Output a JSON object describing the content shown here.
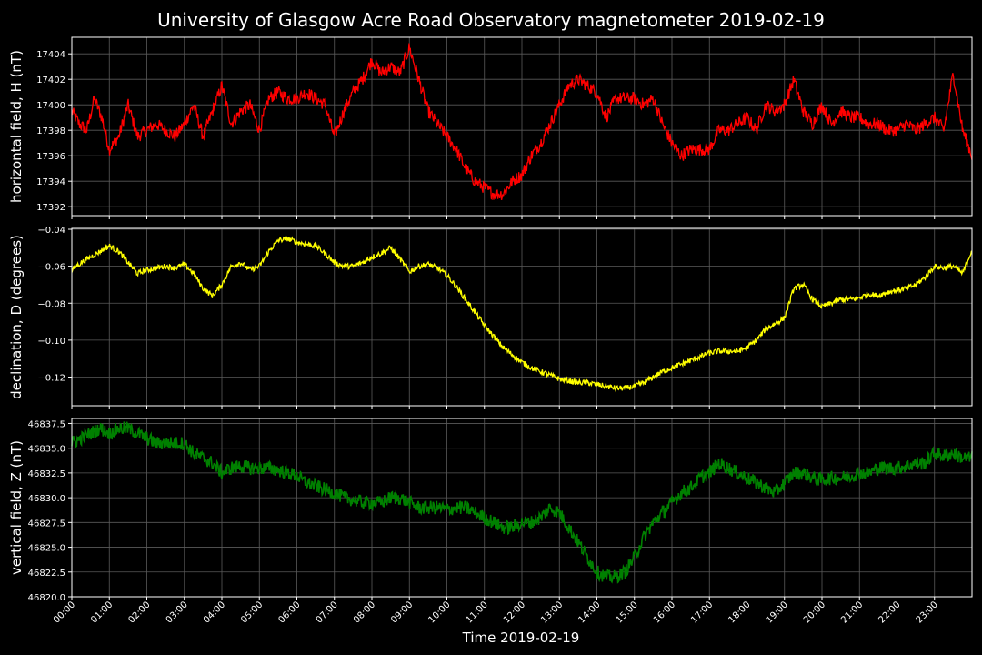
{
  "title": "University of Glasgow Acre Road Observatory magnetometer 2019-02-19",
  "xlabel": "Time 2019-02-19",
  "x_ticks": [
    "00:00",
    "01:00",
    "02:00",
    "03:00",
    "04:00",
    "05:00",
    "06:00",
    "07:00",
    "08:00",
    "09:00",
    "10:00",
    "11:00",
    "12:00",
    "13:00",
    "14:00",
    "15:00",
    "16:00",
    "17:00",
    "18:00",
    "19:00",
    "20:00",
    "21:00",
    "22:00",
    "23:00"
  ],
  "chart_data": [
    {
      "type": "line",
      "ylabel": "horizontal field, H (nT)",
      "color": "#ff0000",
      "xlim": [
        0,
        24
      ],
      "ylim": [
        17391.3,
        17405.3
      ],
      "yticks": [
        17392,
        17394,
        17396,
        17398,
        17400,
        17402,
        17404
      ],
      "ytick_labels": [
        "17392",
        "17394",
        "17396",
        "17398",
        "17400",
        "17402",
        "17404"
      ],
      "grid": true,
      "x": [
        0,
        0.2,
        0.4,
        0.6,
        0.8,
        1.0,
        1.25,
        1.5,
        1.75,
        2.0,
        2.25,
        2.5,
        2.75,
        3.0,
        3.25,
        3.5,
        3.75,
        4.0,
        4.25,
        4.5,
        4.75,
        5.0,
        5.25,
        5.5,
        5.75,
        6.0,
        6.25,
        6.5,
        6.75,
        7.0,
        7.25,
        7.5,
        7.75,
        8.0,
        8.25,
        8.5,
        8.75,
        9.0,
        9.25,
        9.5,
        9.75,
        10.0,
        10.25,
        10.5,
        10.75,
        11.0,
        11.25,
        11.5,
        11.75,
        12.0,
        12.25,
        12.5,
        12.75,
        13.0,
        13.25,
        13.5,
        13.75,
        14.0,
        14.25,
        14.5,
        14.75,
        15.0,
        15.25,
        15.5,
        15.75,
        16.0,
        16.25,
        16.5,
        16.75,
        17.0,
        17.25,
        17.5,
        17.75,
        18.0,
        18.25,
        18.5,
        18.75,
        19.0,
        19.25,
        19.5,
        19.75,
        20.0,
        20.25,
        20.5,
        20.75,
        21.0,
        21.25,
        21.5,
        21.75,
        22.0,
        22.25,
        22.5,
        22.75,
        23.0,
        23.25,
        23.5,
        23.75,
        24.0
      ],
      "values": [
        17399.5,
        17398.5,
        17398,
        17400.5,
        17399,
        17396.5,
        17397.5,
        17400,
        17397.5,
        17398,
        17398.5,
        17398,
        17397.5,
        17398.5,
        17400,
        17397.5,
        17399.5,
        17401.5,
        17398.5,
        17399.5,
        17400,
        17398,
        17400.5,
        17401,
        17400.5,
        17400.5,
        17401,
        17400.5,
        17400,
        17397.5,
        17399.5,
        17401,
        17402,
        17403.5,
        17402.5,
        17403,
        17402.5,
        17404.5,
        17402,
        17399.5,
        17398.5,
        17397.5,
        17396.5,
        17395,
        17394,
        17393.5,
        17393,
        17393,
        17394,
        17394.5,
        17396,
        17397,
        17398.5,
        17400,
        17401.5,
        17402,
        17401.5,
        17401,
        17399,
        17400.5,
        17400.5,
        17400.5,
        17400,
        17400.5,
        17398.5,
        17397,
        17396,
        17396.5,
        17396.5,
        17396.5,
        17398,
        17398,
        17398.5,
        17399,
        17398,
        17400,
        17399.5,
        17400,
        17402,
        17399.5,
        17398.5,
        17400,
        17398.5,
        17399.5,
        17399,
        17399,
        17398.5,
        17398.5,
        17398,
        17398,
        17398.5,
        17398,
        17398.5,
        17399,
        17398,
        17402.5,
        17398,
        17396
      ],
      "noise": 0.5
    },
    {
      "type": "line",
      "ylabel": "declination, D (degrees)",
      "color": "#ffff00",
      "xlim": [
        0,
        24
      ],
      "ylim": [
        -0.1355,
        -0.0395
      ],
      "yticks": [
        -0.12,
        -0.1,
        -0.08,
        -0.06,
        -0.04
      ],
      "ytick_labels": [
        "−0.12",
        "−0.10",
        "−0.08",
        "−0.06",
        "−0.04"
      ],
      "grid": true,
      "x": [
        0,
        0.25,
        0.5,
        0.75,
        1.0,
        1.25,
        1.5,
        1.75,
        2.0,
        2.25,
        2.5,
        2.75,
        3.0,
        3.25,
        3.5,
        3.75,
        4.0,
        4.25,
        4.5,
        4.75,
        5.0,
        5.25,
        5.5,
        5.75,
        6.0,
        6.25,
        6.5,
        6.75,
        7.0,
        7.25,
        7.5,
        7.75,
        8.0,
        8.25,
        8.5,
        8.75,
        9.0,
        9.25,
        9.5,
        9.75,
        10.0,
        10.25,
        10.5,
        10.75,
        11.0,
        11.25,
        11.5,
        11.75,
        12.0,
        12.25,
        12.5,
        12.75,
        13.0,
        13.25,
        13.5,
        13.75,
        14.0,
        14.25,
        14.5,
        14.75,
        15.0,
        15.25,
        15.5,
        15.75,
        16.0,
        16.25,
        16.5,
        16.75,
        17.0,
        17.25,
        17.5,
        17.75,
        18.0,
        18.25,
        18.5,
        18.75,
        19.0,
        19.25,
        19.5,
        19.75,
        20.0,
        20.25,
        20.5,
        20.75,
        21.0,
        21.25,
        21.5,
        21.75,
        22.0,
        22.25,
        22.5,
        22.75,
        23.0,
        23.25,
        23.5,
        23.75,
        24.0
      ],
      "values": [
        -0.062,
        -0.058,
        -0.055,
        -0.052,
        -0.049,
        -0.052,
        -0.058,
        -0.064,
        -0.062,
        -0.061,
        -0.06,
        -0.061,
        -0.059,
        -0.064,
        -0.072,
        -0.076,
        -0.07,
        -0.06,
        -0.058,
        -0.062,
        -0.06,
        -0.052,
        -0.046,
        -0.045,
        -0.047,
        -0.048,
        -0.049,
        -0.053,
        -0.058,
        -0.06,
        -0.06,
        -0.058,
        -0.055,
        -0.053,
        -0.05,
        -0.056,
        -0.063,
        -0.06,
        -0.059,
        -0.061,
        -0.065,
        -0.071,
        -0.078,
        -0.085,
        -0.092,
        -0.098,
        -0.104,
        -0.108,
        -0.112,
        -0.115,
        -0.117,
        -0.119,
        -0.121,
        -0.122,
        -0.123,
        -0.123,
        -0.124,
        -0.125,
        -0.126,
        -0.126,
        -0.125,
        -0.123,
        -0.12,
        -0.117,
        -0.115,
        -0.113,
        -0.111,
        -0.109,
        -0.107,
        -0.106,
        -0.106,
        -0.106,
        -0.104,
        -0.1,
        -0.094,
        -0.091,
        -0.088,
        -0.072,
        -0.07,
        -0.078,
        -0.082,
        -0.08,
        -0.078,
        -0.078,
        -0.077,
        -0.075,
        -0.076,
        -0.074,
        -0.073,
        -0.072,
        -0.07,
        -0.066,
        -0.06,
        -0.061,
        -0.06,
        -0.064,
        -0.051
      ],
      "noise": 0.0015
    },
    {
      "type": "line",
      "ylabel": "vertical field, Z (nT)",
      "color": "#008000",
      "xlim": [
        0,
        24
      ],
      "ylim": [
        46820.0,
        46838.0
      ],
      "yticks": [
        46820.0,
        46822.5,
        46825.0,
        46827.5,
        46830.0,
        46832.5,
        46835.0,
        46837.5
      ],
      "ytick_labels": [
        "46820.0",
        "46822.5",
        "46825.0",
        "46827.5",
        "46830.0",
        "46832.5",
        "46835.0",
        "46837.5"
      ],
      "grid": true,
      "x": [
        0,
        0.25,
        0.5,
        0.75,
        1.0,
        1.25,
        1.5,
        1.75,
        2.0,
        2.25,
        2.5,
        2.75,
        3.0,
        3.25,
        3.5,
        3.75,
        4.0,
        4.25,
        4.5,
        4.75,
        5.0,
        5.25,
        5.5,
        5.75,
        6.0,
        6.25,
        6.5,
        6.75,
        7.0,
        7.25,
        7.5,
        7.75,
        8.0,
        8.25,
        8.5,
        8.75,
        9.0,
        9.25,
        9.5,
        9.75,
        10.0,
        10.25,
        10.5,
        10.75,
        11.0,
        11.25,
        11.5,
        11.75,
        12.0,
        12.25,
        12.5,
        12.75,
        13.0,
        13.25,
        13.5,
        13.75,
        14.0,
        14.25,
        14.5,
        14.75,
        15.0,
        15.25,
        15.5,
        15.75,
        16.0,
        16.25,
        16.5,
        16.75,
        17.0,
        17.25,
        17.5,
        17.75,
        18.0,
        18.25,
        18.5,
        18.75,
        19.0,
        19.25,
        19.5,
        19.75,
        20.0,
        20.25,
        20.5,
        20.75,
        21.0,
        21.25,
        21.5,
        21.75,
        22.0,
        22.25,
        22.5,
        22.75,
        23.0,
        23.25,
        23.5,
        23.75,
        24.0
      ],
      "values": [
        46835.5,
        46836,
        46836.5,
        46837,
        46836.5,
        46837,
        46837,
        46836.5,
        46836,
        46835.5,
        46835.5,
        46835.5,
        46835.5,
        46834.5,
        46834,
        46833.5,
        46832.5,
        46833,
        46833.2,
        46833,
        46833,
        46833,
        46832.8,
        46832.5,
        46832.2,
        46831.5,
        46831.2,
        46830.8,
        46830.5,
        46830,
        46829.8,
        46829.5,
        46829.5,
        46829.5,
        46830,
        46830,
        46829.5,
        46829,
        46829,
        46829,
        46828.8,
        46829,
        46829,
        46828.5,
        46828,
        46827.5,
        46827,
        46827,
        46827.5,
        46827.5,
        46828,
        46829,
        46828.5,
        46827,
        46825.5,
        46824,
        46822.5,
        46822,
        46822,
        46822.5,
        46824,
        46826,
        46827.5,
        46828.5,
        46829.5,
        46830.5,
        46831,
        46832,
        46832.5,
        46833.5,
        46833,
        46832.5,
        46832,
        46831.5,
        46831,
        46830.5,
        46831.5,
        46832.5,
        46832.5,
        46832,
        46831.8,
        46832,
        46832,
        46832.2,
        46832.5,
        46832.5,
        46833,
        46833,
        46833,
        46833.2,
        46833.5,
        46833.5,
        46834.5,
        46834.2,
        46834.5,
        46834,
        46834
      ],
      "noise": 0.7
    }
  ]
}
